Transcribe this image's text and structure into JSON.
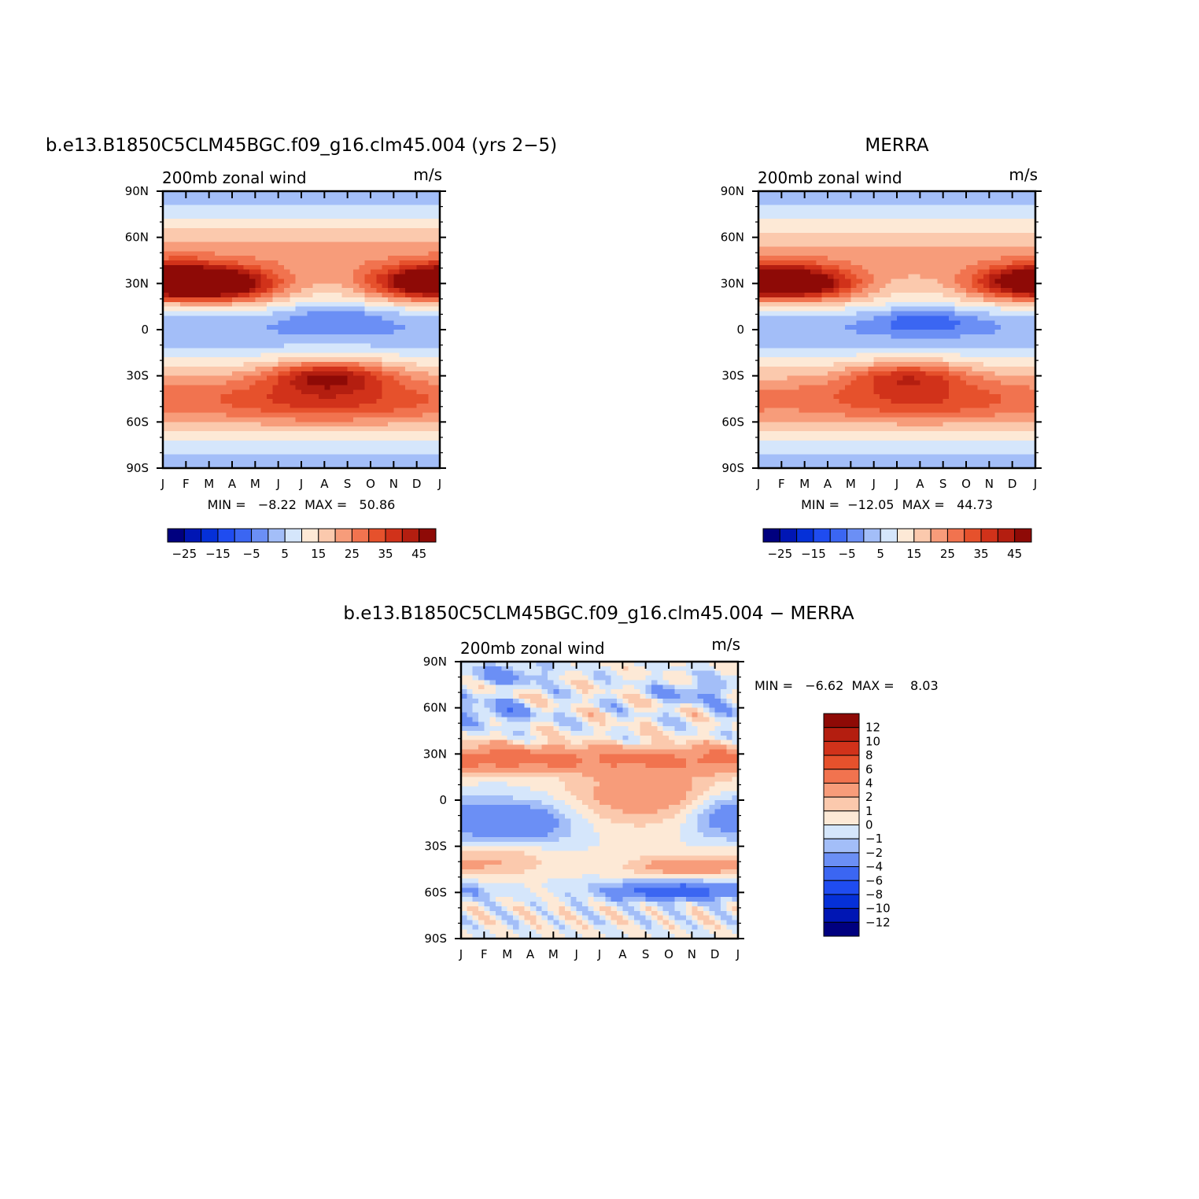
{
  "colors": {
    "model_levels": [
      "#00007f",
      "#0016b4",
      "#0530d8",
      "#1f4cf0",
      "#3b66f2",
      "#6b8ff5",
      "#a3bef8",
      "#d5e6fb",
      "#fde9d6",
      "#fbc9ad",
      "#f79c7a",
      "#f1734f",
      "#e6512c",
      "#d1321a",
      "#b41e10",
      "#8e0a06"
    ],
    "diff_levels": [
      "#8e0a06",
      "#b41e10",
      "#d1321a",
      "#e6512c",
      "#f1734f",
      "#f79c7a",
      "#fbc9ad",
      "#fde9d6",
      "#d5e6fb",
      "#a3bef8",
      "#6b8ff5",
      "#3b66f2",
      "#1f4cf0",
      "#0530d8",
      "#0016b4",
      "#00007f"
    ]
  },
  "chart_data": [
    {
      "type": "heatmap",
      "title": "b.e13.B1850C5CLM45BGC.f09_g16.clm45.004 (yrs 2−5)",
      "subtitle": "200mb zonal wind",
      "units": "m/s",
      "x_ticks": [
        "J",
        "F",
        "M",
        "A",
        "M",
        "J",
        "J",
        "A",
        "S",
        "O",
        "N",
        "D",
        "J"
      ],
      "y_ticks": [
        "90N",
        "60N",
        "30N",
        "0",
        "30S",
        "60S",
        "90S"
      ],
      "stats": "MIN =   −8.22  MAX =   50.86",
      "min": -8.22,
      "max": 50.86,
      "colorbar_labels": [
        "−25",
        "−15",
        "−5",
        "5",
        "15",
        "25",
        "35",
        "45"
      ],
      "jets": [
        {
          "lat": 29,
          "month": 2.3,
          "speed": 50.86
        },
        {
          "lat": 31,
          "month": 11.6,
          "speed": 47
        },
        {
          "lat": -30,
          "month": 7.2,
          "speed": 47
        },
        {
          "lat": 9,
          "month": 7.5,
          "speed": -8.22
        }
      ]
    },
    {
      "type": "heatmap",
      "title": "MERRA",
      "subtitle": "200mb zonal wind",
      "units": "m/s",
      "x_ticks": [
        "J",
        "F",
        "M",
        "A",
        "M",
        "J",
        "J",
        "A",
        "S",
        "O",
        "N",
        "D",
        "J"
      ],
      "y_ticks": [
        "90N",
        "60N",
        "30N",
        "0",
        "30S",
        "60S",
        "90S"
      ],
      "stats": "MIN =  −12.05  MAX =   44.73",
      "min": -12.05,
      "max": 44.73,
      "colorbar_labels": [
        "−25",
        "−15",
        "−5",
        "5",
        "15",
        "25",
        "35",
        "45"
      ],
      "jets": [
        {
          "lat": 29,
          "month": 1.5,
          "speed": 44.73
        },
        {
          "lat": 31,
          "month": 11.7,
          "speed": 43
        },
        {
          "lat": -30,
          "month": 6.5,
          "speed": 42
        },
        {
          "lat": 6,
          "month": 7.2,
          "speed": -12.05
        }
      ]
    },
    {
      "type": "heatmap",
      "title": "b.e13.B1850C5CLM45BGC.f09_g16.clm45.004 − MERRA",
      "subtitle": "200mb zonal wind",
      "units": "m/s",
      "x_ticks": [
        "J",
        "F",
        "M",
        "A",
        "M",
        "J",
        "J",
        "A",
        "S",
        "O",
        "N",
        "D",
        "J"
      ],
      "y_ticks": [
        "90N",
        "60N",
        "30N",
        "0",
        "30S",
        "60S",
        "90S"
      ],
      "stats": "MIN =   −6.62  MAX =    8.03",
      "min": -6.62,
      "max": 8.03,
      "colorbar_labels": [
        "12",
        "10",
        "8",
        "6",
        "4",
        "2",
        "1",
        "0",
        "−1",
        "−2",
        "−4",
        "−6",
        "−8",
        "−10",
        "−12"
      ]
    }
  ]
}
